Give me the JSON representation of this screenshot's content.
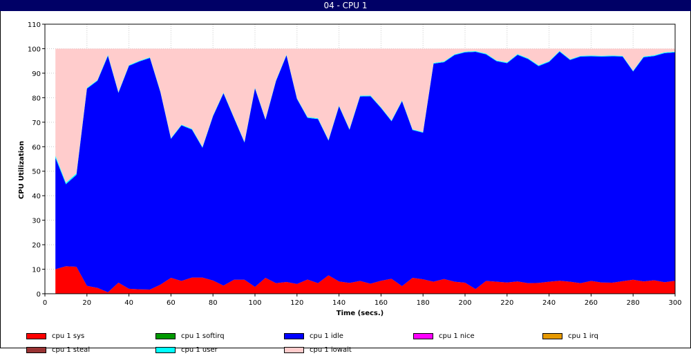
{
  "window": {
    "title": "04 - CPU 1"
  },
  "chart_data": {
    "type": "area",
    "stacked": true,
    "title": "04 - CPU 1",
    "xlabel": "Time (secs.)",
    "ylabel": "CPU Utilization",
    "xlim": [
      0,
      300
    ],
    "ylim": [
      0,
      110
    ],
    "xticks": [
      "0",
      "20",
      "40",
      "60",
      "80",
      "100",
      "120",
      "140",
      "160",
      "180",
      "200",
      "220",
      "240",
      "260",
      "280",
      "300"
    ],
    "yticks": [
      "0",
      "10",
      "20",
      "30",
      "40",
      "50",
      "60",
      "70",
      "80",
      "90",
      "100",
      "110"
    ],
    "grid": true,
    "legend_position": "bottom",
    "x": [
      5,
      10,
      15,
      20,
      25,
      30,
      35,
      40,
      45,
      50,
      55,
      60,
      65,
      70,
      75,
      80,
      85,
      90,
      95,
      100,
      105,
      110,
      115,
      120,
      125,
      130,
      135,
      140,
      145,
      150,
      155,
      160,
      165,
      170,
      175,
      180,
      185,
      190,
      195,
      200,
      205,
      210,
      215,
      220,
      225,
      230,
      235,
      240,
      245,
      250,
      255,
      260,
      265,
      270,
      275,
      280,
      285,
      290,
      295,
      300
    ],
    "series": [
      {
        "name": "cpu 1 sys",
        "color": "#ff0000",
        "values": [
          10,
          11.2,
          11,
          3.2,
          2.4,
          0.6,
          4.5,
          2,
          1.8,
          1.7,
          3.7,
          6.5,
          5.2,
          6.6,
          6.6,
          5.4,
          3.3,
          5.7,
          5.7,
          2.8,
          6.5,
          4.3,
          4.8,
          4,
          5.8,
          4.3,
          7.5,
          5,
          4.4,
          5.2,
          4.1,
          5.3,
          6.1,
          3.1,
          6.5,
          5.9,
          4.9,
          6,
          4.9,
          4.5,
          1.9,
          5.2,
          4.9,
          4.6,
          5,
          4.3,
          4.4,
          4.9,
          5.3,
          4.9,
          4.3,
          5.2,
          4.6,
          4.5,
          5.1,
          5.7,
          5,
          5.5,
          4.7,
          5.3
        ]
      },
      {
        "name": "cpu 1 softirq",
        "color": "#009900",
        "values": [
          0,
          0,
          0,
          0,
          0,
          0,
          0,
          0,
          0,
          0,
          0,
          0,
          0,
          0,
          0,
          0,
          0,
          0,
          0,
          0,
          0,
          0,
          0,
          0,
          0,
          0,
          0,
          0,
          0,
          0,
          0,
          0,
          0,
          0,
          0,
          0,
          0,
          0,
          0,
          0,
          0,
          0,
          0,
          0,
          0,
          0,
          0,
          0,
          0,
          0,
          0,
          0,
          0,
          0,
          0,
          0,
          0,
          0,
          0,
          0
        ]
      },
      {
        "name": "cpu 1 idle",
        "color": "#0000ff",
        "values": [
          45.5,
          33.5,
          37.5,
          80.5,
          84.5,
          96.5,
          77.5,
          91,
          93,
          94.5,
          78.5,
          56.7,
          63.5,
          60.4,
          53,
          67,
          78.5,
          66,
          56,
          81,
          64.5,
          82.5,
          92.5,
          75.5,
          66,
          67,
          55,
          71.5,
          62.5,
          75.3,
          76.5,
          70.5,
          64.3,
          75.5,
          60.3,
          59.8,
          89,
          88.5,
          92.5,
          94,
          96.8,
          92.5,
          90,
          89.5,
          92.5,
          91.5,
          88.5,
          89.7,
          93.5,
          90.5,
          92.5,
          91.7,
          92.2,
          92.4,
          91.7,
          85,
          91.5,
          91.5,
          93.5,
          93.2
        ]
      },
      {
        "name": "cpu 1 nice",
        "color": "#ff00ff",
        "values": [
          0,
          0,
          0,
          0,
          0,
          0,
          0,
          0,
          0,
          0,
          0,
          0,
          0,
          0,
          0,
          0,
          0,
          0,
          0,
          0,
          0,
          0,
          0,
          0,
          0,
          0,
          0,
          0,
          0,
          0,
          0,
          0,
          0,
          0,
          0,
          0,
          0,
          0,
          0,
          0,
          0,
          0,
          0,
          0,
          0,
          0,
          0,
          0,
          0,
          0,
          0,
          0,
          0,
          0,
          0,
          0,
          0,
          0,
          0,
          0
        ]
      },
      {
        "name": "cpu 1 irq",
        "color": "#e69900",
        "values": [
          0,
          0,
          0,
          0,
          0,
          0,
          0,
          0,
          0,
          0,
          0,
          0,
          0,
          0,
          0,
          0,
          0,
          0,
          0,
          0,
          0,
          0,
          0,
          0,
          0,
          0,
          0,
          0,
          0,
          0,
          0,
          0,
          0,
          0,
          0,
          0,
          0,
          0,
          0,
          0,
          0,
          0,
          0,
          0,
          0,
          0,
          0,
          0,
          0,
          0,
          0,
          0,
          0,
          0,
          0,
          0,
          0,
          0,
          0,
          0
        ]
      },
      {
        "name": "cpu 1 steal",
        "color": "#993333",
        "values": [
          0,
          0,
          0,
          0,
          0,
          0,
          0,
          0,
          0,
          0,
          0,
          0,
          0,
          0,
          0,
          0,
          0,
          0,
          0,
          0,
          0,
          0,
          0,
          0,
          0,
          0,
          0,
          0,
          0,
          0,
          0,
          0,
          0,
          0,
          0,
          0,
          0,
          0,
          0,
          0,
          0,
          0,
          0,
          0,
          0,
          0,
          0,
          0,
          0,
          0,
          0,
          0,
          0,
          0,
          0,
          0,
          0,
          0,
          0,
          0
        ]
      },
      {
        "name": "cpu 1 user",
        "color": "#00ffff",
        "values": [
          0.8,
          0.6,
          0.6,
          0.3,
          0.3,
          0.4,
          0.3,
          0.3,
          0.3,
          0.3,
          0.3,
          0.3,
          0.3,
          0.3,
          0.3,
          0.3,
          0.3,
          0.3,
          0.3,
          0.3,
          0.3,
          0.3,
          0.3,
          0.3,
          0.3,
          0.3,
          0.3,
          0.3,
          0.3,
          0.3,
          0.3,
          0.3,
          0.3,
          0.3,
          0.3,
          0.3,
          0.3,
          0.3,
          0.3,
          0.3,
          0.3,
          0.3,
          0.3,
          0.3,
          0.3,
          0.3,
          0.3,
          0.3,
          0.3,
          0.3,
          0.3,
          0.3,
          0.3,
          0.3,
          0.3,
          0.3,
          0.3,
          0.3,
          0.3,
          0.3
        ]
      },
      {
        "name": "cpu 1 iowait",
        "color": "#ffcccc",
        "values": [
          43.7,
          54.7,
          50.9,
          16,
          12.8,
          2.5,
          17.7,
          6.7,
          4.9,
          3.5,
          17.5,
          36.5,
          31,
          32.7,
          40.1,
          27.3,
          17.9,
          28,
          38,
          15.9,
          28.7,
          12.9,
          2.4,
          20.2,
          27.9,
          28.4,
          37.2,
          23.2,
          32.8,
          19.2,
          19.1,
          23.9,
          29.3,
          21.1,
          32.9,
          34,
          5.8,
          5.2,
          2.3,
          1.2,
          1,
          2,
          4.8,
          5.6,
          2.2,
          3.9,
          6.8,
          5.1,
          0.9,
          4.3,
          2.9,
          2.8,
          2.9,
          2.8,
          2.9,
          9,
          3.2,
          2.7,
          1.5,
          1.2
        ]
      }
    ]
  }
}
